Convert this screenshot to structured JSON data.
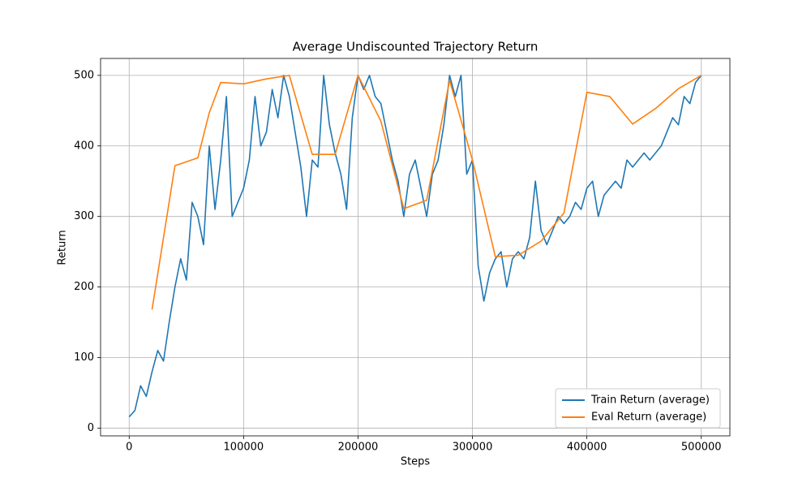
{
  "chart_data": {
    "type": "line",
    "title": "Average Undiscounted Trajectory Return",
    "xlabel": "Steps",
    "ylabel": "Return",
    "xlim": [
      -25000,
      525000
    ],
    "ylim": [
      -11,
      524
    ],
    "xticks": [
      0,
      100000,
      200000,
      300000,
      400000,
      500000
    ],
    "yticks": [
      0,
      100,
      200,
      300,
      400,
      500
    ],
    "grid": true,
    "legend": "lower right",
    "series": [
      {
        "name": "Train Return (average)",
        "color": "#1f77b4",
        "x": [
          0,
          5000,
          10000,
          15000,
          20000,
          25000,
          30000,
          35000,
          40000,
          45000,
          50000,
          55000,
          60000,
          65000,
          70000,
          75000,
          80000,
          85000,
          90000,
          95000,
          100000,
          105000,
          110000,
          115000,
          120000,
          125000,
          130000,
          135000,
          140000,
          145000,
          150000,
          155000,
          160000,
          165000,
          170000,
          175000,
          180000,
          185000,
          190000,
          195000,
          200000,
          205000,
          210000,
          215000,
          220000,
          225000,
          230000,
          235000,
          240000,
          245000,
          250000,
          255000,
          260000,
          265000,
          270000,
          275000,
          280000,
          285000,
          290000,
          295000,
          300000,
          305000,
          310000,
          315000,
          320000,
          325000,
          330000,
          335000,
          340000,
          345000,
          350000,
          355000,
          360000,
          365000,
          370000,
          375000,
          380000,
          385000,
          390000,
          395000,
          400000,
          405000,
          410000,
          415000,
          420000,
          425000,
          430000,
          435000,
          440000,
          445000,
          450000,
          455000,
          460000,
          465000,
          470000,
          475000,
          480000,
          485000,
          490000,
          495000,
          500000
        ],
        "values": [
          16,
          25,
          60,
          45,
          80,
          110,
          95,
          150,
          200,
          240,
          210,
          320,
          300,
          260,
          400,
          310,
          380,
          470,
          300,
          320,
          340,
          380,
          470,
          400,
          420,
          480,
          440,
          500,
          470,
          420,
          370,
          300,
          380,
          370,
          500,
          430,
          390,
          360,
          310,
          440,
          500,
          480,
          500,
          470,
          460,
          420,
          380,
          350,
          300,
          360,
          380,
          340,
          300,
          360,
          380,
          430,
          500,
          470,
          500,
          360,
          380,
          230,
          180,
          220,
          240,
          250,
          200,
          240,
          250,
          240,
          270,
          350,
          280,
          260,
          280,
          300,
          290,
          300,
          320,
          310,
          340,
          350,
          300,
          330,
          340,
          350,
          340,
          380,
          370,
          380,
          390,
          380,
          390,
          400,
          420,
          440,
          430,
          470,
          460,
          490,
          500
        ]
      },
      {
        "name": "Eval Return (average)",
        "color": "#ff7f0e",
        "x": [
          20000,
          40000,
          60000,
          70000,
          80000,
          100000,
          120000,
          140000,
          160000,
          180000,
          200000,
          220000,
          240000,
          260000,
          280000,
          300000,
          320000,
          340000,
          360000,
          380000,
          400000,
          420000,
          440000,
          460000,
          480000,
          500000
        ],
        "values": [
          168,
          372,
          383,
          447,
          490,
          488,
          495,
          500,
          388,
          388,
          500,
          435,
          311,
          323,
          493,
          380,
          243,
          245,
          265,
          305,
          476,
          470,
          431,
          453,
          481,
          500
        ]
      }
    ]
  }
}
